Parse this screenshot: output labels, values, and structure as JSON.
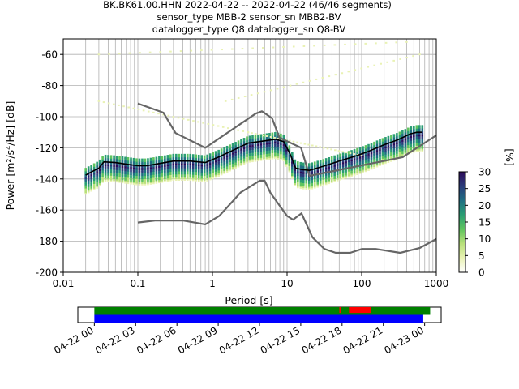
{
  "chart_data": [
    {
      "type": "heatmap",
      "title_lines": [
        "BK.BK61.00.HHN   2022-04-22 -- 2022-04-22  (46/46 segments)",
        "sensor_type MBB-2 sensor_sn MBB2-BV",
        "datalogger_type Q8 datalogger_sn Q8-BV"
      ],
      "xlabel": "Period [s]",
      "ylabel": "Power [m²/s⁴/Hz] [dB]",
      "xscale": "log",
      "xlim": [
        0.01,
        1000
      ],
      "ylim": [
        -200,
        -50
      ],
      "grid": true,
      "xtick_labels": [
        "0.01",
        "0.1",
        "1",
        "10",
        "100",
        "1000"
      ],
      "xticks": [
        0.01,
        0.1,
        1,
        10,
        100,
        1000
      ],
      "ytick_labels": [
        "-200",
        "-180",
        "-160",
        "-140",
        "-120",
        "-100",
        "-80",
        "-60"
      ],
      "yticks": [
        -200,
        -180,
        -160,
        -140,
        -120,
        -100,
        -80,
        -60
      ],
      "colorbar": {
        "label": "[%]",
        "range": [
          0,
          30
        ],
        "ticks": [
          0,
          5,
          10,
          15,
          20,
          25,
          30
        ],
        "tick_labels": [
          "0",
          "5",
          "10",
          "15",
          "20",
          "25",
          "30"
        ],
        "colors": [
          "#ffffff",
          "#e9f2b4",
          "#b8e07a",
          "#5fc45e",
          "#2a9d73",
          "#1f6f82",
          "#2a3b7a",
          "#2d0b59"
        ]
      },
      "nhnm": {
        "period": [
          0.1,
          0.22,
          0.32,
          0.8,
          3.8,
          4.6,
          6.3,
          7.9,
          15.4,
          20.0,
          354.8,
          1000
        ],
        "power": [
          -91.5,
          -97.4,
          -110.5,
          -120.0,
          -98.0,
          -96.5,
          -101.0,
          -113.5,
          -120.0,
          -138.0,
          -126.0,
          -112.0
        ]
      },
      "nlnm": {
        "period": [
          0.1,
          0.17,
          0.4,
          0.8,
          1.24,
          2.4,
          4.3,
          5.0,
          6.0,
          10.0,
          12.0,
          15.6,
          21.9,
          31.6,
          45.0,
          70.0,
          101.0,
          154.0,
          328.0,
          600.0,
          1000.0
        ],
        "power": [
          -168.0,
          -166.7,
          -166.7,
          -169.2,
          -163.7,
          -148.6,
          -141.1,
          -141.1,
          -149.0,
          -163.8,
          -166.2,
          -162.1,
          -177.5,
          -185.0,
          -187.5,
          -187.5,
          -185.0,
          -185.0,
          -187.5,
          -184.4,
          -178.6
        ]
      },
      "mode": {
        "period": [
          0.02,
          0.025,
          0.03,
          0.035,
          0.05,
          0.07,
          0.1,
          0.13,
          0.2,
          0.3,
          0.5,
          0.8,
          1.2,
          2.0,
          3.0,
          5.0,
          7.0,
          9.0,
          11.0,
          13.0,
          16.0,
          20.0,
          30.0,
          50.0,
          80.0,
          120.0,
          200.0,
          300.0,
          450.0,
          550.0,
          650.0
        ],
        "power": [
          -137.5,
          -135.0,
          -133.0,
          -129.0,
          -129.5,
          -130.5,
          -131.5,
          -131.5,
          -130.0,
          -128.5,
          -128.5,
          -129.5,
          -126.0,
          -121.0,
          -117.0,
          -115.5,
          -114.5,
          -116.0,
          -124.0,
          -133.0,
          -134.0,
          -134.5,
          -132.0,
          -128.5,
          -125.5,
          -122.5,
          -118.0,
          -115.0,
          -111.0,
          -110.0,
          -110.0
        ]
      }
    },
    {
      "type": "timeline",
      "xtick_labels": [
        "04-22 00",
        "04-22 03",
        "04-22 06",
        "04-22 09",
        "04-22 12",
        "04-22 15",
        "04-22 18",
        "04-22 21",
        "04-23 00"
      ],
      "xticks_hours": [
        0,
        3,
        6,
        9,
        12,
        15,
        18,
        21,
        24
      ],
      "xlim_hours": [
        -1.2,
        25.2
      ],
      "rows": [
        {
          "name": "",
          "color": "#008000",
          "segments": [
            [
              0,
              24.4
            ]
          ]
        },
        {
          "name": "",
          "color": "#0000ff",
          "segments": [
            [
              0,
              23.9
            ]
          ]
        }
      ],
      "gaps": [
        {
          "color": "#ff0000",
          "start": 18.5,
          "end": 20.1
        },
        {
          "color": "#ff0000",
          "start": 17.8,
          "end": 17.95
        }
      ]
    }
  ]
}
